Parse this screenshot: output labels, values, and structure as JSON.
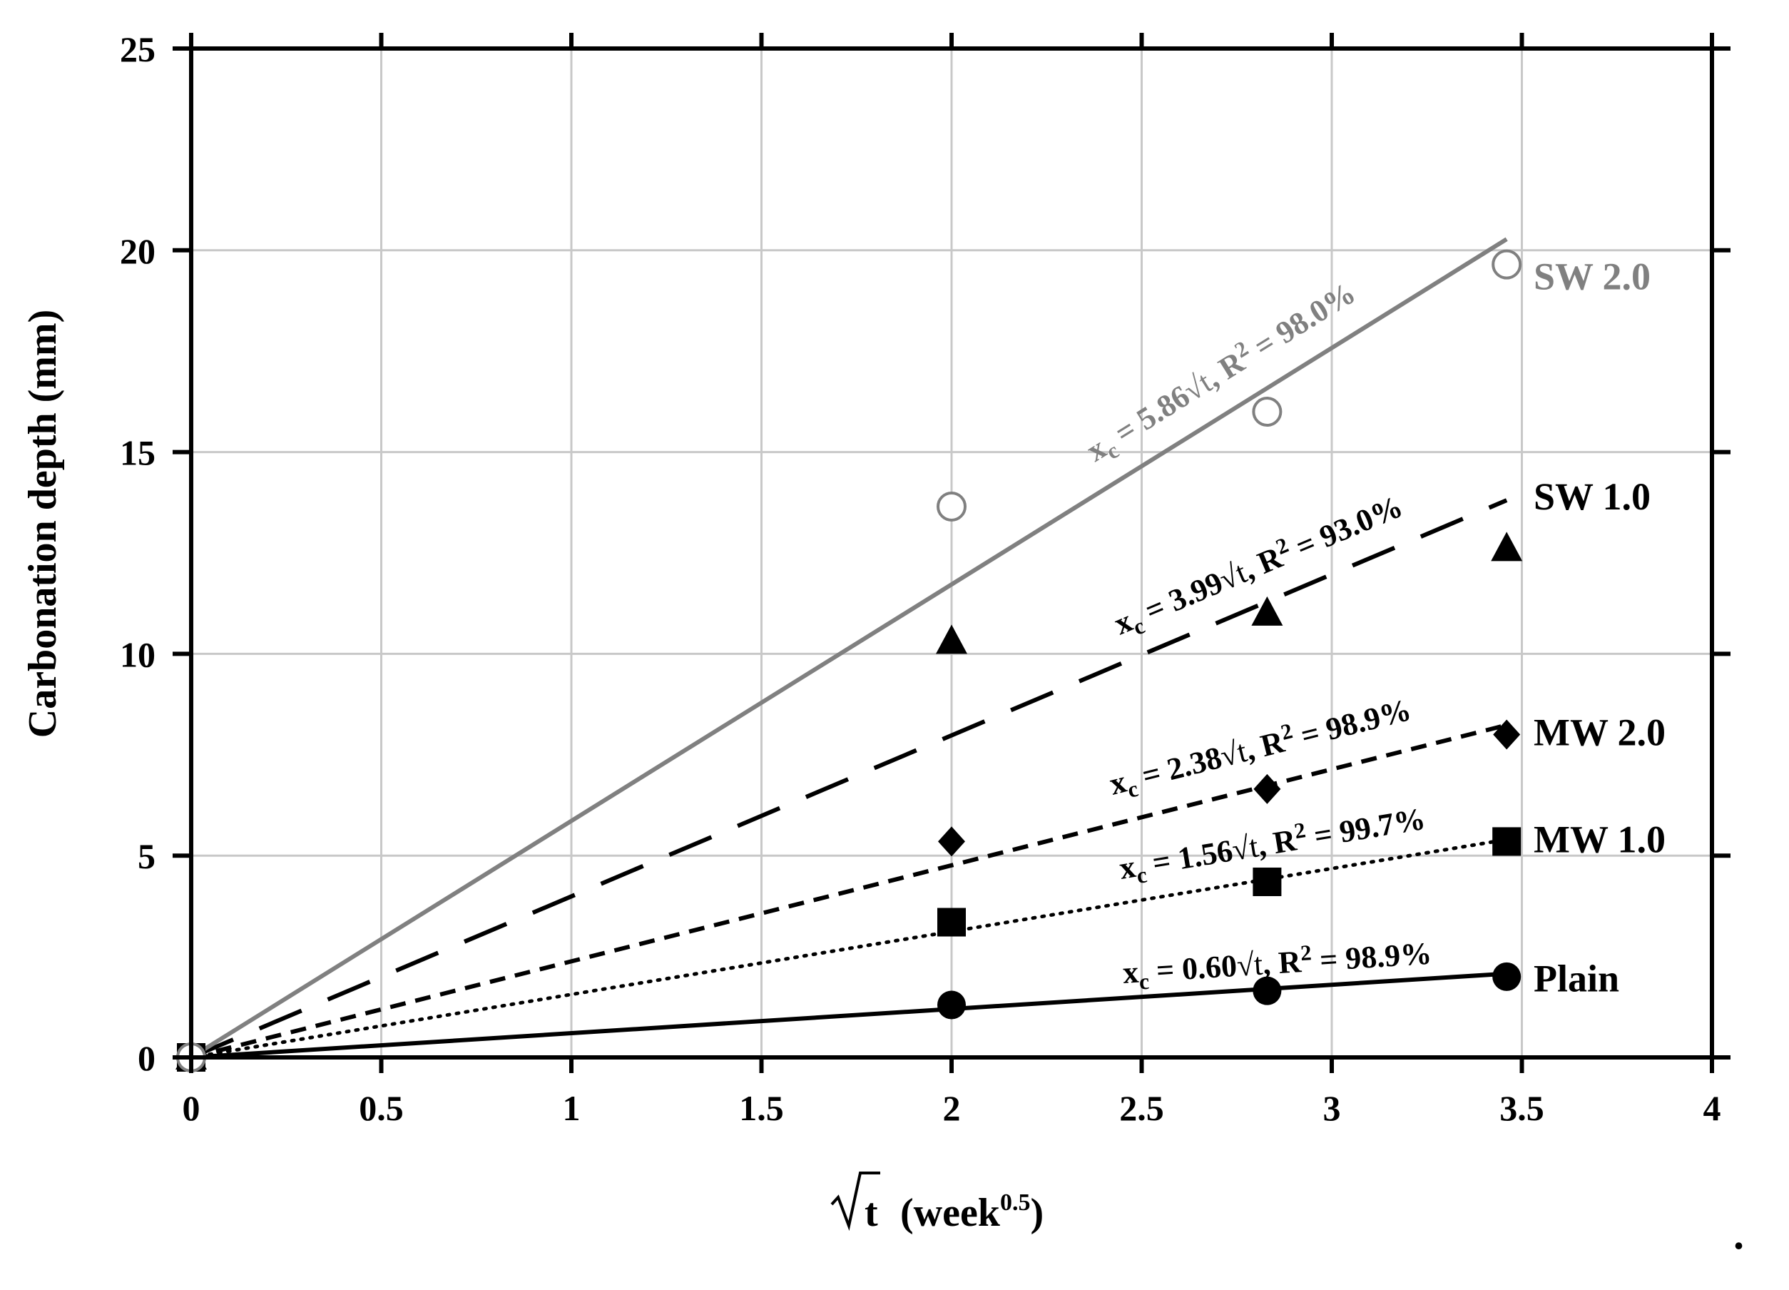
{
  "chart_data": {
    "type": "scatter",
    "xlabel": "(week",
    "xlabel_symbol": "√t",
    "xlabel_exponent": "0.5",
    "xlabel_close": ")",
    "ylabel": "Carbonation depth (mm)",
    "xlim": [
      0,
      4
    ],
    "ylim": [
      0,
      25
    ],
    "x_ticks": [
      "0",
      "0.5",
      "1",
      "1.5",
      "2",
      "2.5",
      "3",
      "3.5",
      "4"
    ],
    "y_ticks": [
      "0",
      "5",
      "10",
      "15",
      "20",
      "25"
    ],
    "grid": true,
    "series": [
      {
        "name": "Plain",
        "label": "Plain",
        "marker": "circle-filled",
        "color": "#000000",
        "line": "solid",
        "x": [
          0,
          2,
          2.83,
          3.46
        ],
        "y": [
          0,
          1.3,
          1.65,
          2.0
        ],
        "fit": {
          "slope": 0.6,
          "prefix": "x",
          "sub": "c",
          "mid": " = 0.60",
          "rad": "t",
          "rtext": ", R",
          "sup": "2",
          "tail": " = 98.9%"
        }
      },
      {
        "name": "MW 1.0",
        "label": "MW 1.0",
        "marker": "square",
        "color": "#000000",
        "line": "dotted",
        "x": [
          0,
          2,
          2.83,
          3.46
        ],
        "y": [
          0,
          3.35,
          4.35,
          5.35
        ],
        "fit": {
          "slope": 1.56,
          "prefix": "x",
          "sub": "c",
          "mid": " = 1.56",
          "rad": "t",
          "rtext": ", R",
          "sup": "2",
          "tail": " = 99.7%"
        }
      },
      {
        "name": "MW 2.0",
        "label": "MW 2.0",
        "marker": "diamond",
        "color": "#000000",
        "line": "short-dash",
        "x": [
          0,
          2,
          2.83,
          3.46
        ],
        "y": [
          0,
          5.35,
          6.65,
          8.0
        ],
        "fit": {
          "slope": 2.38,
          "prefix": "x",
          "sub": "c",
          "mid": " = 2.38",
          "rad": "t",
          "rtext": ", R",
          "sup": "2",
          "tail": " = 98.9%"
        }
      },
      {
        "name": "SW 1.0",
        "label": "SW 1.0",
        "marker": "triangle",
        "color": "#000000",
        "line": "long-dash",
        "x": [
          0,
          2,
          2.83,
          3.46
        ],
        "y": [
          0,
          10.3,
          11.0,
          12.6
        ],
        "fit": {
          "slope": 3.99,
          "prefix": "x",
          "sub": "c",
          "mid": " = 3.99",
          "rad": "t",
          "rtext": ", R",
          "sup": "2",
          "tail": " = 93.0%"
        }
      },
      {
        "name": "SW 2.0",
        "label": "SW 2.0",
        "marker": "circle-open",
        "color": "#808080",
        "line": "solid",
        "x": [
          0,
          2,
          2.83,
          3.46
        ],
        "y": [
          0,
          13.65,
          16.0,
          19.65
        ],
        "fit": {
          "slope": 5.86,
          "prefix": "x",
          "sub": "c",
          "mid": " = 5.86",
          "rad": "t",
          "rtext": ", R",
          "sup": "2",
          "tail": " = 98.0%"
        }
      }
    ],
    "trailing_mark": "."
  }
}
